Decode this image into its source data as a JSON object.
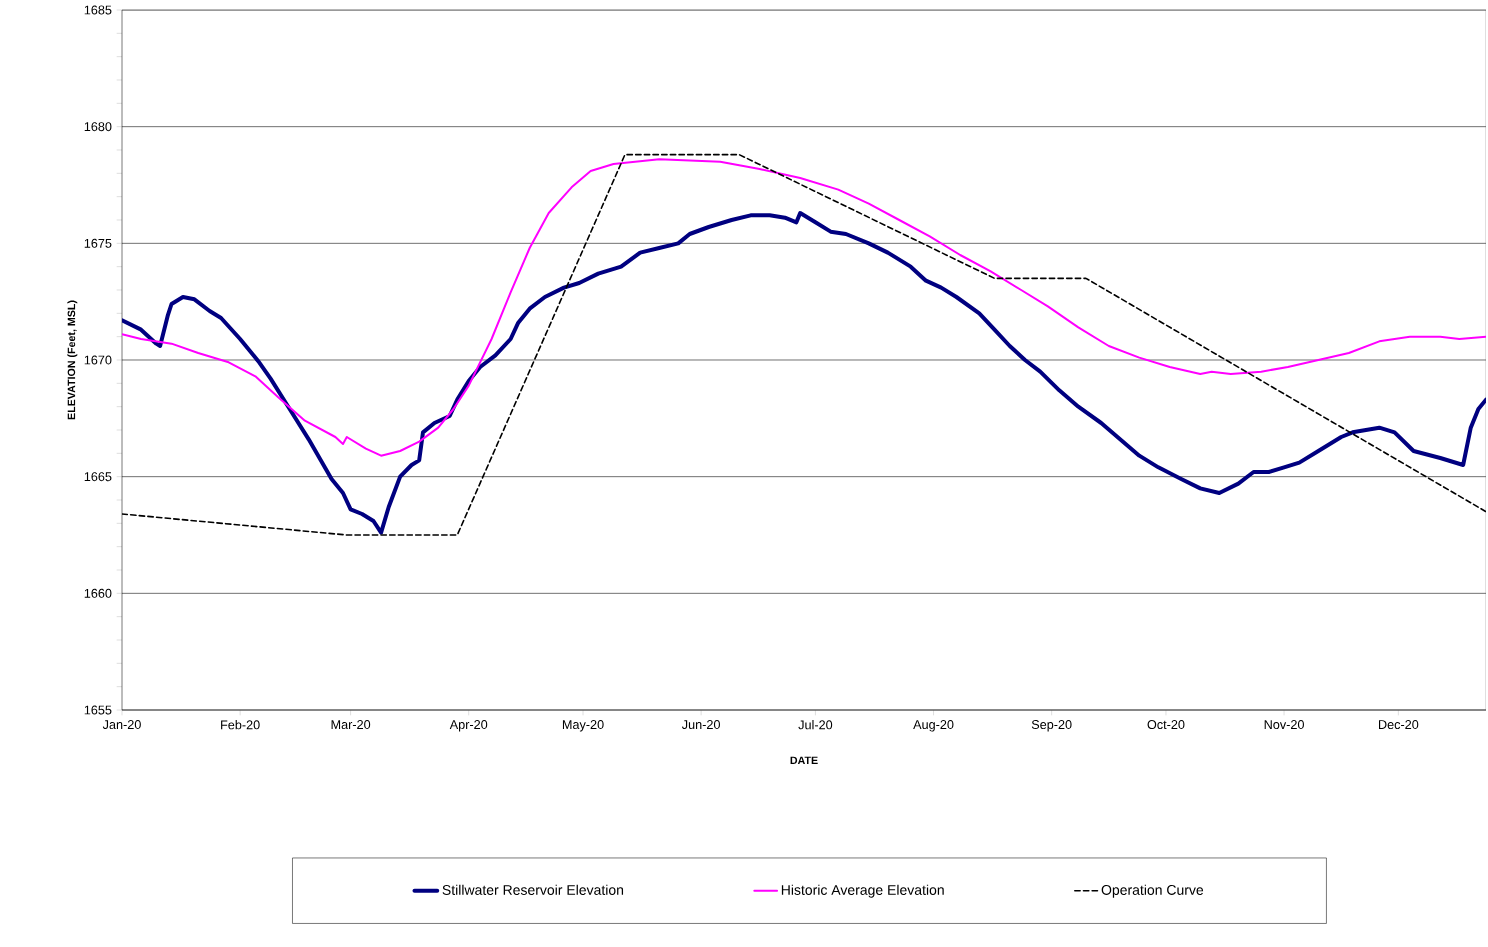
{
  "chart_data": {
    "type": "line",
    "xlabel": "DATE",
    "ylabel": "ELEVATION (Feet, MSL)",
    "xlim": [
      "2020-01-01",
      "2020-12-24"
    ],
    "xticks": [
      {
        "value": "2020-01-01",
        "label": "Jan-20"
      },
      {
        "value": "2020-02-01",
        "label": "Feb-20"
      },
      {
        "value": "2020-03-01",
        "label": "Mar-20"
      },
      {
        "value": "2020-04-01",
        "label": "Apr-20"
      },
      {
        "value": "2020-05-01",
        "label": "May-20"
      },
      {
        "value": "2020-06-01",
        "label": "Jun-20"
      },
      {
        "value": "2020-07-01",
        "label": "Jul-20"
      },
      {
        "value": "2020-08-01",
        "label": "Aug-20"
      },
      {
        "value": "2020-09-01",
        "label": "Sep-20"
      },
      {
        "value": "2020-10-01",
        "label": "Oct-20"
      },
      {
        "value": "2020-11-01",
        "label": "Nov-20"
      },
      {
        "value": "2020-12-01",
        "label": "Dec-20"
      }
    ],
    "ylim": [
      1655,
      1685
    ],
    "yticks": [
      1655,
      1660,
      1665,
      1670,
      1675,
      1680,
      1685
    ],
    "grid": "y",
    "legend": "bottom",
    "marker": "none",
    "series": [
      {
        "name": "Stillwater Reservoir Elevation",
        "color": "#000080",
        "line_style": "solid",
        "x": [
          "2020-01-01",
          "2020-01-06",
          "2020-01-10",
          "2020-01-11",
          "2020-01-13",
          "2020-01-14",
          "2020-01-17",
          "2020-01-20",
          "2020-01-24",
          "2020-01-27",
          "2020-02-01",
          "2020-02-06",
          "2020-02-09",
          "2020-02-14",
          "2020-02-19",
          "2020-02-25",
          "2020-02-28",
          "2020-03-01",
          "2020-03-04",
          "2020-03-07",
          "2020-03-09",
          "2020-03-11",
          "2020-03-14",
          "2020-03-17",
          "2020-03-19",
          "2020-03-20",
          "2020-03-23",
          "2020-03-27",
          "2020-03-29",
          "2020-04-01",
          "2020-04-04",
          "2020-04-08",
          "2020-04-12",
          "2020-04-14",
          "2020-04-17",
          "2020-04-21",
          "2020-04-26",
          "2020-04-30",
          "2020-05-05",
          "2020-05-11",
          "2020-05-16",
          "2020-05-21",
          "2020-05-26",
          "2020-05-29",
          "2020-06-03",
          "2020-06-09",
          "2020-06-14",
          "2020-06-19",
          "2020-06-23",
          "2020-06-26",
          "2020-06-27",
          "2020-07-01",
          "2020-07-05",
          "2020-07-09",
          "2020-07-15",
          "2020-07-20",
          "2020-07-26",
          "2020-07-30",
          "2020-08-03",
          "2020-08-07",
          "2020-08-13",
          "2020-08-17",
          "2020-08-21",
          "2020-08-25",
          "2020-08-29",
          "2020-09-03",
          "2020-09-08",
          "2020-09-14",
          "2020-09-19",
          "2020-09-24",
          "2020-09-29",
          "2020-10-05",
          "2020-10-10",
          "2020-10-15",
          "2020-10-20",
          "2020-10-24",
          "2020-10-28",
          "2020-11-01",
          "2020-11-05",
          "2020-11-10",
          "2020-11-16",
          "2020-11-19",
          "2020-11-26",
          "2020-11-30",
          "2020-12-05",
          "2020-12-12",
          "2020-12-18",
          "2020-12-20",
          "2020-12-22",
          "2020-12-24"
        ],
        "values": [
          1671.7,
          1671.3,
          1670.7,
          1670.6,
          1671.9,
          1672.4,
          1672.7,
          1672.6,
          1672.1,
          1671.8,
          1670.9,
          1669.9,
          1669.2,
          1667.9,
          1666.6,
          1664.9,
          1664.3,
          1663.6,
          1663.4,
          1663.1,
          1662.6,
          1663.7,
          1665.0,
          1665.5,
          1665.7,
          1666.9,
          1667.3,
          1667.6,
          1668.3,
          1669.1,
          1669.7,
          1670.2,
          1670.9,
          1671.6,
          1672.2,
          1672.7,
          1673.1,
          1673.3,
          1673.7,
          1674.0,
          1674.6,
          1674.8,
          1675.0,
          1675.4,
          1675.7,
          1676.0,
          1676.2,
          1676.2,
          1676.1,
          1675.9,
          1676.3,
          1675.9,
          1675.5,
          1675.4,
          1675.0,
          1674.6,
          1674.0,
          1673.4,
          1673.1,
          1672.7,
          1672.0,
          1671.3,
          1670.6,
          1670.0,
          1669.5,
          1668.7,
          1668.0,
          1667.3,
          1666.6,
          1665.9,
          1665.4,
          1664.9,
          1664.5,
          1664.3,
          1664.7,
          1665.2,
          1665.2,
          1665.4,
          1665.6,
          1666.1,
          1666.7,
          1666.9,
          1667.1,
          1666.9,
          1666.1,
          1665.8,
          1665.5,
          1667.1,
          1667.9,
          1668.3
        ]
      },
      {
        "name": "Historic Average Elevation",
        "color": "#ff00ff",
        "line_style": "solid",
        "x": [
          "2020-01-01",
          "2020-01-06",
          "2020-01-14",
          "2020-01-21",
          "2020-01-29",
          "2020-02-05",
          "2020-02-11",
          "2020-02-18",
          "2020-02-26",
          "2020-02-28",
          "2020-02-29",
          "2020-03-05",
          "2020-03-09",
          "2020-03-14",
          "2020-03-19",
          "2020-03-24",
          "2020-03-28",
          "2020-04-01",
          "2020-04-07",
          "2020-04-12",
          "2020-04-17",
          "2020-04-22",
          "2020-04-28",
          "2020-05-03",
          "2020-05-09",
          "2020-05-21",
          "2020-06-06",
          "2020-06-16",
          "2020-06-27",
          "2020-07-07",
          "2020-07-15",
          "2020-07-23",
          "2020-07-31",
          "2020-08-08",
          "2020-08-16",
          "2020-08-24",
          "2020-08-31",
          "2020-09-08",
          "2020-09-16",
          "2020-09-24",
          "2020-10-02",
          "2020-10-10",
          "2020-10-13",
          "2020-10-18",
          "2020-10-26",
          "2020-11-02",
          "2020-11-10",
          "2020-11-18",
          "2020-11-26",
          "2020-12-04",
          "2020-12-12",
          "2020-12-17",
          "2020-12-24"
        ],
        "values": [
          1671.1,
          1670.9,
          1670.7,
          1670.3,
          1669.9,
          1669.3,
          1668.4,
          1667.4,
          1666.7,
          1666.4,
          1666.7,
          1666.2,
          1665.9,
          1666.1,
          1666.5,
          1667.1,
          1667.9,
          1668.9,
          1670.9,
          1672.9,
          1674.8,
          1676.3,
          1677.4,
          1678.1,
          1678.4,
          1678.6,
          1678.5,
          1678.2,
          1677.8,
          1677.3,
          1676.7,
          1676.0,
          1675.3,
          1674.5,
          1673.8,
          1673.0,
          1672.3,
          1671.4,
          1670.6,
          1670.1,
          1669.7,
          1669.4,
          1669.5,
          1669.4,
          1669.5,
          1669.7,
          1670.0,
          1670.3,
          1670.8,
          1671.0,
          1671.0,
          1670.9,
          1671.0
        ]
      },
      {
        "name": "Operation Curve",
        "color": "#000000",
        "line_style": "dashed",
        "x": [
          "2020-01-01",
          "2020-02-29",
          "2020-03-29",
          "2020-05-12",
          "2020-06-11",
          "2020-08-17",
          "2020-09-10",
          "2020-12-24"
        ],
        "values": [
          1663.4,
          1662.5,
          1662.5,
          1678.8,
          1678.8,
          1673.5,
          1673.5,
          1663.5
        ]
      }
    ]
  }
}
